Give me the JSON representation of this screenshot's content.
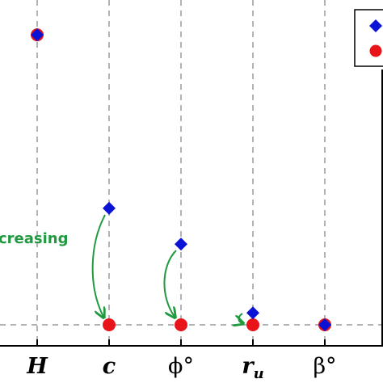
{
  "chart_data": {
    "type": "scatter",
    "categories": [
      "H",
      "c",
      "ϕ°",
      "r_u",
      "β°"
    ],
    "tick_labels": [
      {
        "main": "H",
        "sub": ""
      },
      {
        "main": "c",
        "sub": ""
      },
      {
        "main": "ϕ°",
        "sub": ""
      },
      {
        "main": "r",
        "sub": "u"
      },
      {
        "main": "β°",
        "sub": ""
      }
    ],
    "series": [
      {
        "marker": "diamond",
        "color": "#0a12d6",
        "values": [
          0.97,
          0.39,
          0.27,
          0.04,
          0.0
        ]
      },
      {
        "marker": "circle",
        "color": "#e8141a",
        "values": [
          0.97,
          0.0,
          0.0,
          0.0,
          0.0
        ]
      }
    ],
    "ylim": [
      0,
      1.0
    ],
    "grid": "vertical-dashed",
    "baseline_dashed": true,
    "legend_placement": "top-right",
    "annotation": {
      "text": "creasing",
      "color": "#1f9a3f"
    }
  }
}
